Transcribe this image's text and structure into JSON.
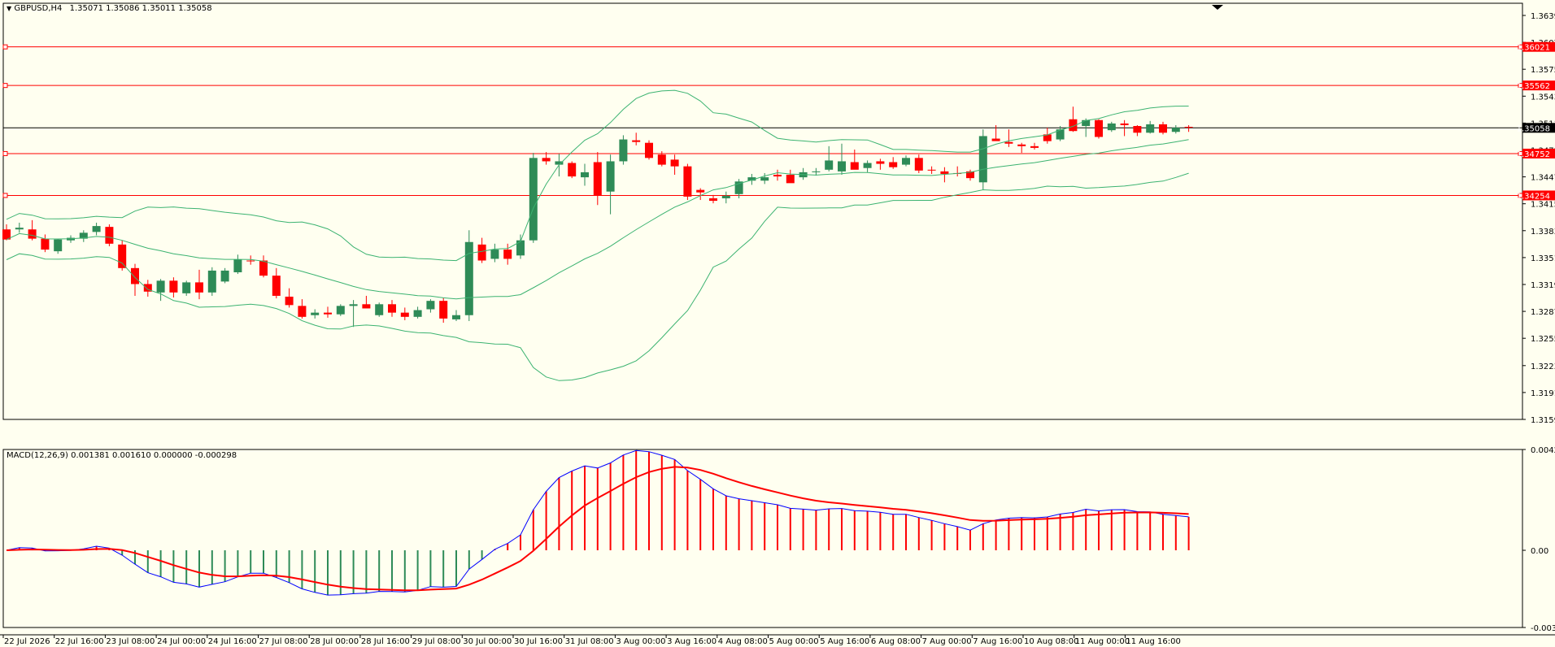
{
  "header": {
    "symbol": "GBPUSD,H4",
    "ohlc": "1.35071 1.35086 1.35011 1.35058"
  },
  "macd_header": "MACD(12,26,9) 0.001381 0.001610 0.000000 -0.000298",
  "colors": {
    "background": "#fffff0",
    "bull": "#2e8b57",
    "bear": "#ff0000",
    "bands": "#3cb371",
    "level_lines": "#ff0000",
    "current_price": "#000000",
    "macd_line": "#0000ff",
    "signal_line": "#ff0000"
  },
  "chart_data": [
    {
      "type": "candlestick",
      "title": "GBPUSD,H4",
      "overlays": [
        "bollinger_bands"
      ],
      "ylim": [
        1.3159,
        1.3654
      ],
      "y_ticks": [
        "1.36395",
        "1.36075",
        "1.35755",
        "1.35435",
        "1.35115",
        "1.34795",
        "1.34475",
        "1.34155",
        "1.33835",
        "1.33515",
        "1.33195",
        "1.32875",
        "1.32555",
        "1.32230",
        "1.31910",
        "1.31590"
      ],
      "x_ticks": [
        "22 Jul 2026",
        "22 Jul 16:00",
        "23 Jul 08:00",
        "24 Jul 00:00",
        "24 Jul 16:00",
        "27 Jul 08:00",
        "28 Jul 00:00",
        "28 Jul 16:00",
        "29 Jul 08:00",
        "30 Jul 00:00",
        "30 Jul 16:00",
        "31 Jul 08:00",
        "3 Aug 00:00",
        "3 Aug 16:00",
        "4 Aug 08:00",
        "5 Aug 00:00",
        "5 Aug 16:00",
        "6 Aug 08:00",
        "7 Aug 00:00",
        "7 Aug 16:00",
        "10 Aug 08:00",
        "11 Aug 00:00",
        "11 Aug 16:00"
      ],
      "price_levels": [
        {
          "value": 1.36021,
          "label": "1.36021"
        },
        {
          "value": 1.35562,
          "label": "1.35562"
        },
        {
          "value": 1.34752,
          "label": "1.34752"
        },
        {
          "value": 1.34254,
          "label": "1.34254"
        }
      ],
      "current_price": {
        "value": 1.35058,
        "label": "1.35058"
      },
      "candles": [
        [
          1.3385,
          1.3391,
          1.3372,
          1.3373
        ],
        [
          1.3385,
          1.3393,
          1.3381,
          1.3387
        ],
        [
          1.3385,
          1.3396,
          1.3372,
          1.3374
        ],
        [
          1.3374,
          1.3379,
          1.3358,
          1.3361
        ],
        [
          1.3359,
          1.3374,
          1.3356,
          1.3373
        ],
        [
          1.3372,
          1.3378,
          1.3369,
          1.3375
        ],
        [
          1.3374,
          1.3384,
          1.337,
          1.3381
        ],
        [
          1.3382,
          1.3393,
          1.3378,
          1.3389
        ],
        [
          1.3388,
          1.3391,
          1.3365,
          1.3368
        ],
        [
          1.3367,
          1.3372,
          1.3336,
          1.3339
        ],
        [
          1.3339,
          1.3344,
          1.3306,
          1.332
        ],
        [
          1.332,
          1.3325,
          1.3305,
          1.3311
        ],
        [
          1.331,
          1.3326,
          1.33,
          1.3324
        ],
        [
          1.3324,
          1.3328,
          1.3304,
          1.331
        ],
        [
          1.3309,
          1.3324,
          1.3306,
          1.3322
        ],
        [
          1.3322,
          1.3337,
          1.3302,
          1.331
        ],
        [
          1.331,
          1.334,
          1.3306,
          1.3336
        ],
        [
          1.3323,
          1.3339,
          1.3321,
          1.3336
        ],
        [
          1.3334,
          1.3355,
          1.3332,
          1.3349
        ],
        [
          1.3348,
          1.3354,
          1.3343,
          1.3347
        ],
        [
          1.3348,
          1.3354,
          1.3328,
          1.333
        ],
        [
          1.333,
          1.3339,
          1.3303,
          1.3306
        ],
        [
          1.3305,
          1.3315,
          1.3292,
          1.3295
        ],
        [
          1.3294,
          1.3302,
          1.3279,
          1.3281
        ],
        [
          1.3283,
          1.329,
          1.3279,
          1.3286
        ],
        [
          1.3286,
          1.3293,
          1.328,
          1.3284
        ],
        [
          1.3284,
          1.3296,
          1.3282,
          1.3294
        ],
        [
          1.3294,
          1.3301,
          1.3269,
          1.3296
        ],
        [
          1.3296,
          1.3306,
          1.3294,
          1.3291
        ],
        [
          1.3283,
          1.3298,
          1.3281,
          1.3296
        ],
        [
          1.3296,
          1.3301,
          1.3281,
          1.3286
        ],
        [
          1.3286,
          1.3292,
          1.3277,
          1.3281
        ],
        [
          1.3281,
          1.3293,
          1.3279,
          1.3289
        ],
        [
          1.329,
          1.3302,
          1.3286,
          1.33
        ],
        [
          1.33,
          1.3304,
          1.3274,
          1.3279
        ],
        [
          1.3278,
          1.3289,
          1.3276,
          1.3283
        ],
        [
          1.3283,
          1.3384,
          1.3276,
          1.337
        ],
        [
          1.3367,
          1.3375,
          1.3345,
          1.3348
        ],
        [
          1.335,
          1.3368,
          1.3346,
          1.3361
        ],
        [
          1.3361,
          1.3368,
          1.3343,
          1.335
        ],
        [
          1.3354,
          1.3379,
          1.335,
          1.3372
        ],
        [
          1.3372,
          1.3476,
          1.3369,
          1.347
        ],
        [
          1.347,
          1.3477,
          1.3462,
          1.3466
        ],
        [
          1.3462,
          1.3475,
          1.3448,
          1.3466
        ],
        [
          1.3464,
          1.3466,
          1.3446,
          1.3448
        ],
        [
          1.3447,
          1.3463,
          1.3437,
          1.3453
        ],
        [
          1.3465,
          1.3477,
          1.3414,
          1.3425
        ],
        [
          1.343,
          1.3474,
          1.3403,
          1.3466
        ],
        [
          1.3466,
          1.3497,
          1.3462,
          1.3492
        ],
        [
          1.3491,
          1.35,
          1.3485,
          1.3489
        ],
        [
          1.3488,
          1.3491,
          1.3468,
          1.347
        ],
        [
          1.3474,
          1.3478,
          1.346,
          1.3462
        ],
        [
          1.3468,
          1.3474,
          1.345,
          1.346
        ],
        [
          1.346,
          1.3463,
          1.342,
          1.3424
        ],
        [
          1.3432,
          1.3434,
          1.342,
          1.3429
        ],
        [
          1.3422,
          1.3426,
          1.3416,
          1.3419
        ],
        [
          1.3422,
          1.343,
          1.3416,
          1.3425
        ],
        [
          1.3427,
          1.3445,
          1.3422,
          1.3442
        ],
        [
          1.3443,
          1.3451,
          1.3438,
          1.3447
        ],
        [
          1.3443,
          1.3452,
          1.3439,
          1.3447
        ],
        [
          1.345,
          1.3456,
          1.3443,
          1.3448
        ],
        [
          1.345,
          1.3456,
          1.3443,
          1.344
        ],
        [
          1.3447,
          1.3458,
          1.3444,
          1.3453
        ],
        [
          1.3453,
          1.3458,
          1.3449,
          1.3454
        ],
        [
          1.3456,
          1.3484,
          1.3454,
          1.3467
        ],
        [
          1.3454,
          1.3487,
          1.345,
          1.3466
        ],
        [
          1.3465,
          1.348,
          1.346,
          1.3456
        ],
        [
          1.3458,
          1.3467,
          1.3453,
          1.3464
        ],
        [
          1.3466,
          1.3469,
          1.3456,
          1.3463
        ],
        [
          1.3465,
          1.3471,
          1.3457,
          1.3459
        ],
        [
          1.3462,
          1.3473,
          1.346,
          1.347
        ],
        [
          1.347,
          1.3474,
          1.3452,
          1.3455
        ],
        [
          1.3456,
          1.346,
          1.3451,
          1.3455
        ],
        [
          1.3454,
          1.3459,
          1.3441,
          1.3451
        ],
        [
          1.3452,
          1.346,
          1.3448,
          1.3451
        ],
        [
          1.3454,
          1.3456,
          1.3443,
          1.3446
        ],
        [
          1.3441,
          1.3504,
          1.3432,
          1.3496
        ],
        [
          1.3493,
          1.3509,
          1.3491,
          1.349
        ],
        [
          1.3489,
          1.3504,
          1.3483,
          1.3487
        ],
        [
          1.3486,
          1.3488,
          1.3476,
          1.3484
        ],
        [
          1.3484,
          1.3488,
          1.348,
          1.3482
        ],
        [
          1.3498,
          1.3506,
          1.3487,
          1.349
        ],
        [
          1.3492,
          1.3508,
          1.349,
          1.3504
        ],
        [
          1.3516,
          1.3531,
          1.3501,
          1.3502
        ],
        [
          1.3508,
          1.3517,
          1.3495,
          1.3515
        ],
        [
          1.3515,
          1.3516,
          1.3493,
          1.3495
        ],
        [
          1.3503,
          1.3513,
          1.3501,
          1.3511
        ],
        [
          1.3511,
          1.3515,
          1.3496,
          1.3509
        ],
        [
          1.3508,
          1.3509,
          1.3496,
          1.35
        ],
        [
          1.35,
          1.3514,
          1.3499,
          1.351
        ],
        [
          1.351,
          1.3513,
          1.3498,
          1.35
        ],
        [
          1.3501,
          1.3509,
          1.3499,
          1.3506
        ],
        [
          1.3507,
          1.3509,
          1.3501,
          1.3506
        ]
      ]
    },
    {
      "type": "macd",
      "title": "MACD(12,26,9)",
      "ylim": [
        -0.00327,
        0.00427
      ],
      "y_ticks": [
        "0.00427",
        "0.00",
        "-0.00327"
      ]
    }
  ]
}
